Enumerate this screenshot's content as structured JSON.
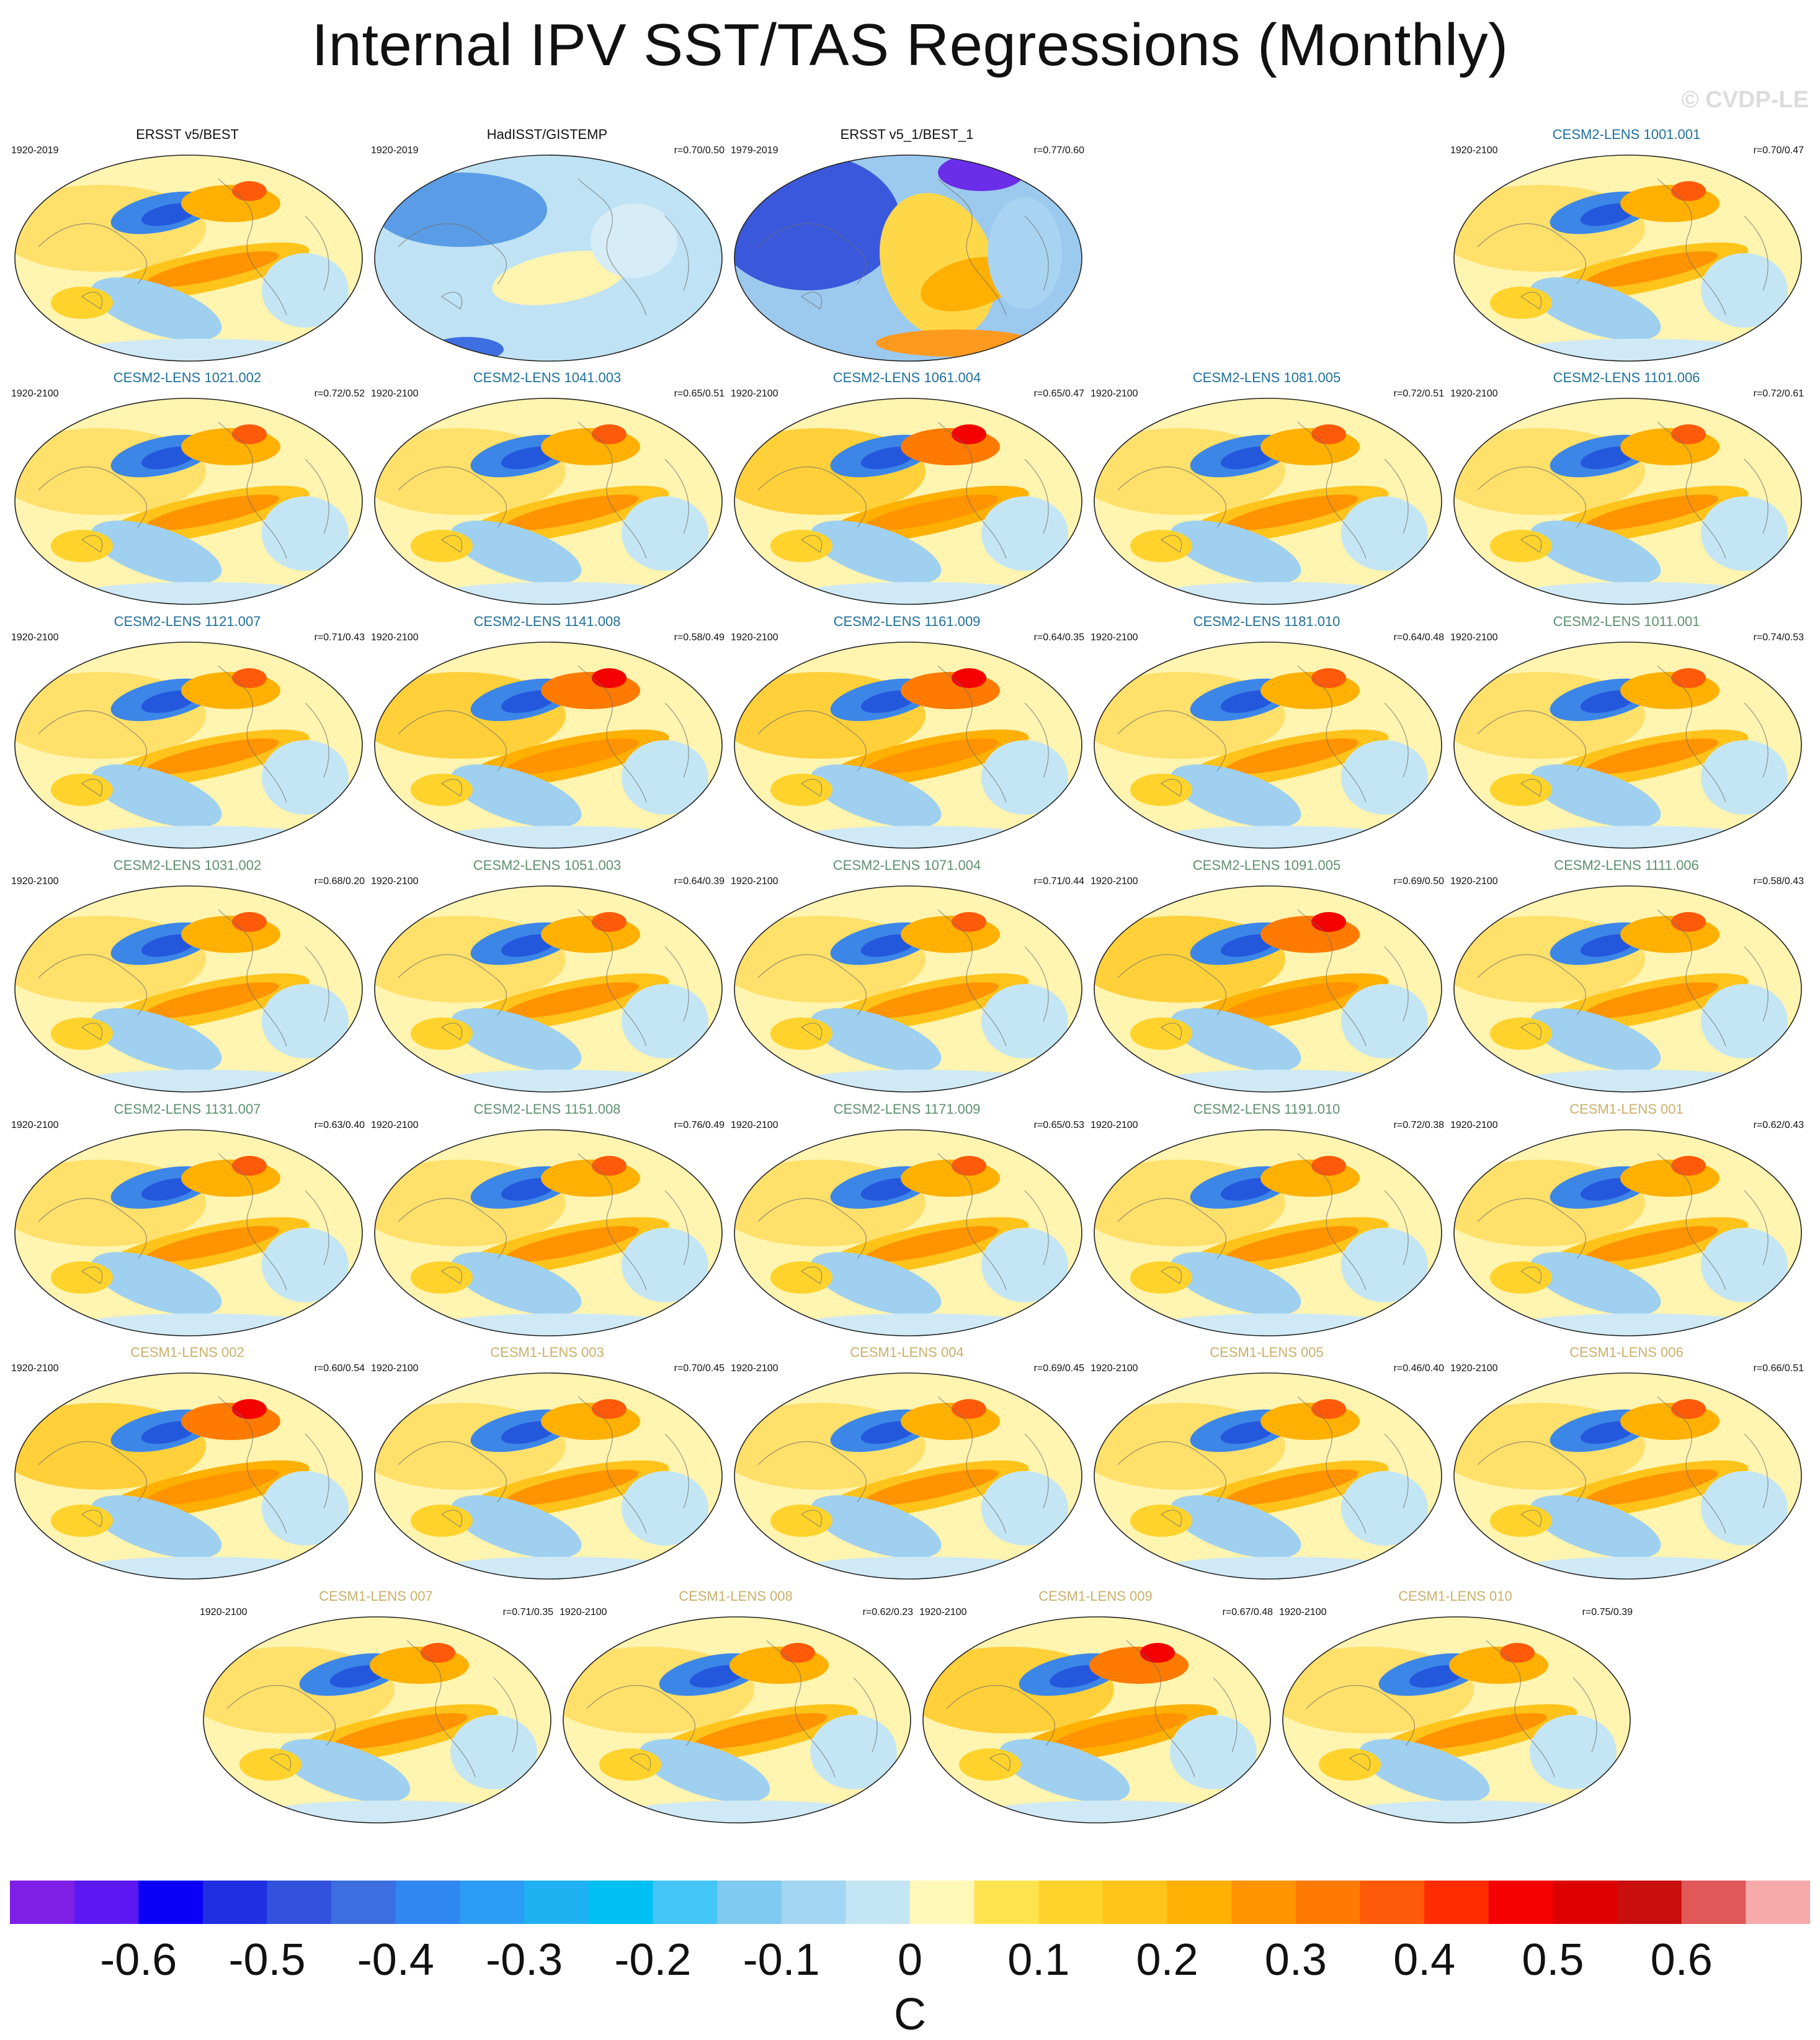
{
  "title": "Internal IPV SST/TAS Regressions (Monthly)",
  "watermark": "© CVDP-LE",
  "chart_data": {
    "type": "map-panels",
    "variable": "SST/TAS regression on internal IPV index",
    "units": "C",
    "colorbar": {
      "colors": [
        "#7f1fe6",
        "#5c18f0",
        "#0a00f7",
        "#1f30e0",
        "#3252dd",
        "#3c6ee0",
        "#2f87f0",
        "#2c9cf5",
        "#20b1f3",
        "#00bff2",
        "#43c5f5",
        "#7fcaf0",
        "#a3d6f2",
        "#c4e6f4",
        "#fff8b8",
        "#ffe44f",
        "#ffd32c",
        "#ffc31a",
        "#ffb000",
        "#ff9300",
        "#ff7a00",
        "#ff5a0a",
        "#ff2c00",
        "#f50000",
        "#dc0000",
        "#c80e0e",
        "#e05858",
        "#f6aaaa"
      ],
      "tick_labels": [
        "-0.6",
        "-0.5",
        "-0.4",
        "-0.3",
        "-0.2",
        "-0.1",
        "0",
        "0.1",
        "0.2",
        "0.3",
        "0.4",
        "0.5",
        "0.6"
      ]
    },
    "panels": [
      {
        "title": "ERSST v5/BEST",
        "period": "1920-2019",
        "corr": "",
        "color": "#111111",
        "pattern": "obs1"
      },
      {
        "title": "HadISST/GISTEMP",
        "period": "1920-2019",
        "corr": "r=0.70/0.50",
        "color": "#111111",
        "pattern": "obs2"
      },
      {
        "title": "ERSST v5_1/BEST_1",
        "period": "1979-2019",
        "corr": "r=0.77/0.60",
        "color": "#111111",
        "pattern": "obs3"
      },
      {
        "title": "CESM2-LENS 1001.001",
        "period": "1920-2100",
        "corr": "r=0.70/0.47",
        "color": "#1f6f9a",
        "pattern": "model"
      },
      {
        "title": "CESM2-LENS 1021.002",
        "period": "1920-2100",
        "corr": "r=0.72/0.52",
        "color": "#1f6f9a",
        "pattern": "model"
      },
      {
        "title": "CESM2-LENS 1041.003",
        "period": "1920-2100",
        "corr": "r=0.65/0.51",
        "color": "#1f6f9a",
        "pattern": "model"
      },
      {
        "title": "CESM2-LENS 1061.004",
        "period": "1920-2100",
        "corr": "r=0.65/0.47",
        "color": "#1f6f9a",
        "pattern": "warm"
      },
      {
        "title": "CESM2-LENS 1081.005",
        "period": "1920-2100",
        "corr": "r=0.72/0.51",
        "color": "#1f6f9a",
        "pattern": "model"
      },
      {
        "title": "CESM2-LENS 1101.006",
        "period": "1920-2100",
        "corr": "r=0.72/0.61",
        "color": "#1f6f9a",
        "pattern": "model"
      },
      {
        "title": "CESM2-LENS 1121.007",
        "period": "1920-2100",
        "corr": "r=0.71/0.43",
        "color": "#1f6f9a",
        "pattern": "model"
      },
      {
        "title": "CESM2-LENS 1141.008",
        "period": "1920-2100",
        "corr": "r=0.58/0.49",
        "color": "#1f6f9a",
        "pattern": "warm"
      },
      {
        "title": "CESM2-LENS 1161.009",
        "period": "1920-2100",
        "corr": "r=0.64/0.35",
        "color": "#1f6f9a",
        "pattern": "warm"
      },
      {
        "title": "CESM2-LENS 1181.010",
        "period": "1920-2100",
        "corr": "r=0.64/0.48",
        "color": "#1f6f9a",
        "pattern": "model"
      },
      {
        "title": "CESM2-LENS 1011.001",
        "period": "1920-2100",
        "corr": "r=0.74/0.53",
        "color": "#5f8f6f",
        "pattern": "model"
      },
      {
        "title": "CESM2-LENS 1031.002",
        "period": "1920-2100",
        "corr": "r=0.68/0.20",
        "color": "#5f8f6f",
        "pattern": "model"
      },
      {
        "title": "CESM2-LENS 1051.003",
        "period": "1920-2100",
        "corr": "r=0.64/0.39",
        "color": "#5f8f6f",
        "pattern": "model"
      },
      {
        "title": "CESM2-LENS 1071.004",
        "period": "1920-2100",
        "corr": "r=0.71/0.44",
        "color": "#5f8f6f",
        "pattern": "model"
      },
      {
        "title": "CESM2-LENS 1091.005",
        "period": "1920-2100",
        "corr": "r=0.69/0.50",
        "color": "#5f8f6f",
        "pattern": "warm"
      },
      {
        "title": "CESM2-LENS 1111.006",
        "period": "1920-2100",
        "corr": "r=0.58/0.43",
        "color": "#5f8f6f",
        "pattern": "model"
      },
      {
        "title": "CESM2-LENS 1131.007",
        "period": "1920-2100",
        "corr": "r=0.63/0.40",
        "color": "#5f8f6f",
        "pattern": "model"
      },
      {
        "title": "CESM2-LENS 1151.008",
        "period": "1920-2100",
        "corr": "r=0.76/0.49",
        "color": "#5f8f6f",
        "pattern": "model"
      },
      {
        "title": "CESM2-LENS 1171.009",
        "period": "1920-2100",
        "corr": "r=0.65/0.53",
        "color": "#5f8f6f",
        "pattern": "model"
      },
      {
        "title": "CESM2-LENS 1191.010",
        "period": "1920-2100",
        "corr": "r=0.72/0.38",
        "color": "#5f8f6f",
        "pattern": "model"
      },
      {
        "title": "CESM1-LENS 001",
        "period": "1920-2100",
        "corr": "r=0.62/0.43",
        "color": "#c9b06a",
        "pattern": "model"
      },
      {
        "title": "CESM1-LENS 002",
        "period": "1920-2100",
        "corr": "r=0.60/0.54",
        "color": "#c9b06a",
        "pattern": "warm"
      },
      {
        "title": "CESM1-LENS 003",
        "period": "1920-2100",
        "corr": "r=0.70/0.45",
        "color": "#c9b06a",
        "pattern": "model"
      },
      {
        "title": "CESM1-LENS 004",
        "period": "1920-2100",
        "corr": "r=0.69/0.45",
        "color": "#c9b06a",
        "pattern": "model"
      },
      {
        "title": "CESM1-LENS 005",
        "period": "1920-2100",
        "corr": "r=0.46/0.40",
        "color": "#c9b06a",
        "pattern": "model"
      },
      {
        "title": "CESM1-LENS 006",
        "period": "1920-2100",
        "corr": "r=0.66/0.51",
        "color": "#c9b06a",
        "pattern": "model"
      },
      {
        "title": "CESM1-LENS 007",
        "period": "1920-2100",
        "corr": "r=0.71/0.35",
        "color": "#c9b06a",
        "pattern": "model"
      },
      {
        "title": "CESM1-LENS 008",
        "period": "1920-2100",
        "corr": "r=0.62/0.23",
        "color": "#c9b06a",
        "pattern": "model"
      },
      {
        "title": "CESM1-LENS 009",
        "period": "1920-2100",
        "corr": "r=0.67/0.48",
        "color": "#c9b06a",
        "pattern": "warm"
      },
      {
        "title": "CESM1-LENS 010",
        "period": "1920-2100",
        "corr": "r=0.75/0.39",
        "color": "#c9b06a",
        "pattern": "model"
      }
    ]
  }
}
